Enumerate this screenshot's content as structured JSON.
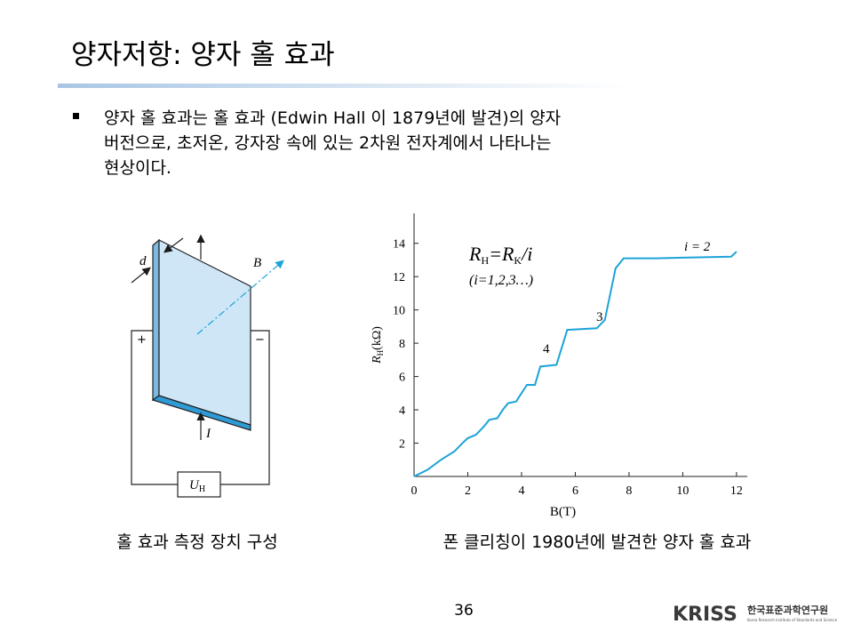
{
  "slide": {
    "title": "양자저항: 양자 홀 효과",
    "bullet": [
      "양자 홀 효과는 홀 효과 (Edwin Hall 이 1879년에 발견)의 양자",
      "버전으로,  초저온, 강자장 속에 있는 2차원 전자계에서 나타나는",
      "현상이다."
    ],
    "captions": [
      "홀 효과 측정 장치 구성",
      "폰 클리칭이 1980년에 발견한 양자 홀 효과"
    ],
    "page_number": "36",
    "logo": {
      "mark": "KRISS",
      "name": "한국표준과학연구원",
      "subtitle": "Korea Research Institute of Standards and Science"
    }
  },
  "diagram": {
    "labels": {
      "d": "d",
      "B": "B",
      "plus": "+",
      "minus": "−",
      "I": "I",
      "U": "U",
      "U_sub": "H"
    }
  },
  "chart_data": {
    "type": "line",
    "x": [
      0,
      0.5,
      1,
      1.5,
      1.8,
      2,
      2.3,
      2.6,
      2.8,
      3.1,
      3.3,
      3.5,
      3.8,
      4,
      4.2,
      4.5,
      4.7,
      5.3,
      5.7,
      6.8,
      7.1,
      7.5,
      7.8,
      9,
      11.8,
      12
    ],
    "values": [
      0,
      0.4,
      1,
      1.5,
      2,
      2.3,
      2.5,
      3,
      3.4,
      3.5,
      4,
      4.4,
      4.5,
      5,
      5.5,
      5.5,
      6.6,
      6.7,
      8.8,
      8.9,
      9.4,
      12.5,
      13.1,
      13.1,
      13.2,
      13.5
    ],
    "color": "#1ba3d8",
    "xlim": [
      0,
      12.4
    ],
    "ylim": [
      0,
      15.8
    ],
    "xticks": [
      0,
      2,
      4,
      6,
      8,
      10,
      12
    ],
    "yticks": [
      2,
      4,
      6,
      8,
      10,
      12,
      14
    ],
    "xlabel": "B(T)",
    "ylabel": [
      "R",
      "H",
      "(kΩ)"
    ],
    "annotations": {
      "formula": [
        "R",
        "H",
        "=R",
        "K",
        "/i"
      ],
      "index": "(i=1,2,3…)",
      "i2": "i = 2",
      "i3": "3",
      "i4": "4"
    }
  }
}
